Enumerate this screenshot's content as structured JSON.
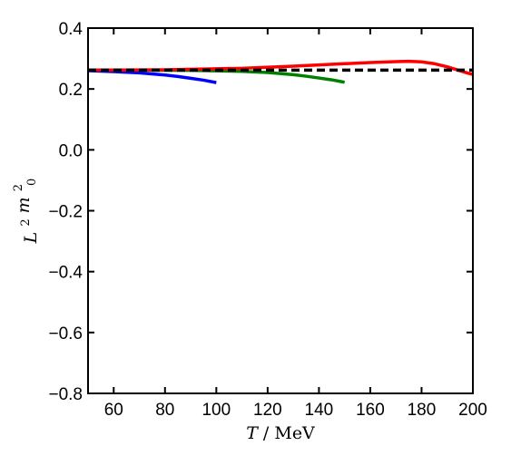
{
  "chart_data": {
    "type": "line",
    "title": "",
    "xlabel": {
      "symbol": "T",
      "unit": "/ MeV"
    },
    "ylabel": {
      "symbol1": "L",
      "sup1": "2",
      "symbol2": "m",
      "sub2": "0",
      "sup2": "2"
    },
    "xlim": [
      50,
      200
    ],
    "ylim": [
      -0.8,
      0.4
    ],
    "x_ticks": [
      60,
      80,
      100,
      120,
      140,
      160,
      180,
      200
    ],
    "x_tick_labels": [
      "60",
      "80",
      "100",
      "120",
      "140",
      "160",
      "180",
      "200"
    ],
    "y_ticks": [
      0.4,
      0.2,
      0.0,
      -0.2,
      -0.4,
      -0.6,
      -0.8
    ],
    "y_tick_labels": [
      "0.4",
      "0.2",
      "0.0",
      "−0.2",
      "−0.4",
      "−0.6",
      "−0.8"
    ],
    "grid": false,
    "legend": "none",
    "series": [
      {
        "color": "#0000ff",
        "style": "solid",
        "x": [
          50,
          60,
          70,
          80,
          85,
          90,
          95,
          100
        ],
        "y": [
          0.26,
          0.257,
          0.253,
          0.246,
          0.241,
          0.235,
          0.229,
          0.221
        ]
      },
      {
        "color": "#008000",
        "style": "solid",
        "x": [
          50,
          70,
          90,
          110,
          120,
          130,
          135,
          140,
          145,
          150
        ],
        "y": [
          0.262,
          0.262,
          0.261,
          0.258,
          0.254,
          0.247,
          0.242,
          0.236,
          0.23,
          0.222
        ]
      },
      {
        "color": "#ff0000",
        "style": "solid",
        "x": [
          50,
          80,
          110,
          130,
          150,
          160,
          170,
          175,
          180,
          185,
          190,
          195,
          198,
          200
        ],
        "y": [
          0.262,
          0.263,
          0.268,
          0.275,
          0.283,
          0.287,
          0.29,
          0.291,
          0.289,
          0.283,
          0.273,
          0.26,
          0.252,
          0.248
        ]
      },
      {
        "color": "#000000",
        "style": "dashed",
        "x": [
          50,
          200
        ],
        "y": [
          0.262,
          0.262
        ]
      }
    ]
  }
}
